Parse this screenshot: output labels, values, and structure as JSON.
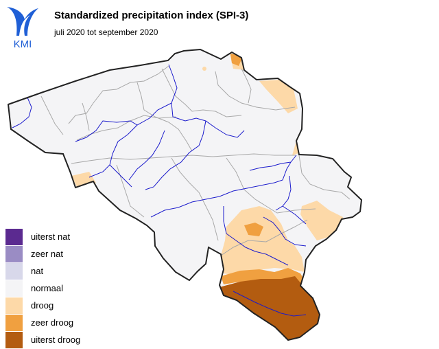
{
  "header": {
    "logo_text": "KMI",
    "title": "Standardized precipitation index (SPI-3)",
    "subtitle": "juli 2020 tot september 2020"
  },
  "colors": {
    "land_normal": "#f4f4f6",
    "border": "#222222",
    "province_lines": "#a8a8a8",
    "rivers": "#1a1acc",
    "logo_blue": "#1f5fd6"
  },
  "legend": [
    {
      "label": "uiterst nat",
      "color": "#5b2a90"
    },
    {
      "label": "zeer nat",
      "color": "#9a8cc4"
    },
    {
      "label": "nat",
      "color": "#d8d8ea"
    },
    {
      "label": "normaal",
      "color": "#f4f4f6"
    },
    {
      "label": "droog",
      "color": "#fdd9a8"
    },
    {
      "label": "zeer droog",
      "color": "#f0a040"
    },
    {
      "label": "uiterst droog",
      "color": "#b35c10"
    }
  ]
}
